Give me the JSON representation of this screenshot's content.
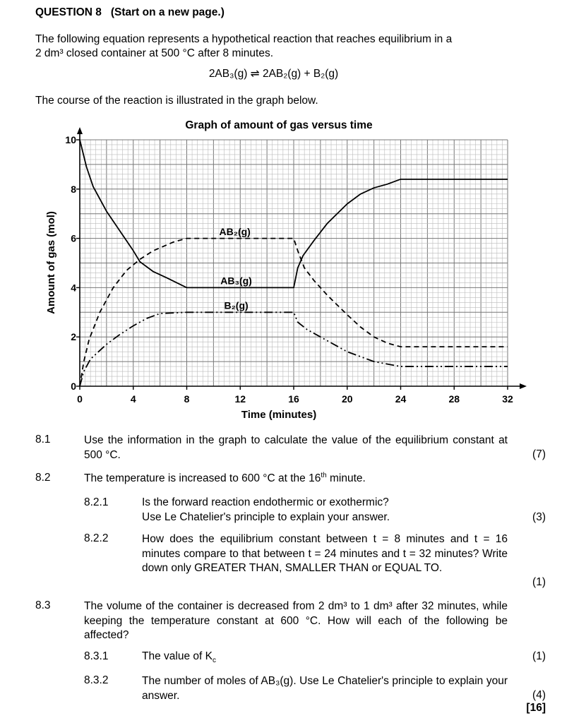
{
  "heading": {
    "question": "QUESTION 8",
    "note": "(Start on a new page.)"
  },
  "intro": {
    "line1": "The following equation represents a hypothetical reaction that reaches equilibrium in a",
    "line2": "2 dm³ closed container at 500 °C after 8 minutes.",
    "equation": "2AB₃(g) ⇌ 2AB₂(g) + B₂(g)",
    "course": "The course of the reaction is illustrated in the graph below."
  },
  "chart_data": {
    "type": "line",
    "title": "Graph of amount of gas versus time",
    "xlabel": "Time (minutes)",
    "ylabel": "Amount of gas (mol)",
    "xlim": [
      0,
      32
    ],
    "ylim": [
      0,
      10
    ],
    "xticks": [
      0,
      4,
      8,
      12,
      16,
      20,
      24,
      28,
      32
    ],
    "yticks": [
      0,
      2,
      4,
      6,
      8,
      10
    ],
    "grid": true,
    "series": [
      {
        "name": "AB₃(g)",
        "style": "solid",
        "x": [
          0,
          0.5,
          1,
          2,
          3,
          4,
          4.5,
          5.5,
          6.5,
          8,
          16,
          16.3,
          16.7,
          17.5,
          18.5,
          20,
          21,
          22,
          23,
          24,
          32
        ],
        "y": [
          10,
          8.9,
          8.1,
          7.1,
          6.3,
          5.5,
          5.05,
          4.65,
          4.4,
          4.0,
          4.0,
          4.8,
          5.3,
          5.9,
          6.6,
          7.4,
          7.8,
          8.05,
          8.2,
          8.4,
          8.4
        ]
      },
      {
        "name": "AB₂(g)",
        "style": "dashed",
        "x": [
          0,
          0.3,
          0.7,
          1.5,
          2.5,
          3.5,
          4.5,
          5.5,
          7,
          8,
          16,
          16.3,
          16.8,
          17.5,
          18.5,
          20,
          21,
          22,
          23,
          24,
          32
        ],
        "y": [
          0,
          1.0,
          1.9,
          3.0,
          4.0,
          4.7,
          5.15,
          5.5,
          5.85,
          6.0,
          6.0,
          5.5,
          4.8,
          4.3,
          3.7,
          2.9,
          2.4,
          2.0,
          1.75,
          1.6,
          1.6
        ]
      },
      {
        "name": "B₂(g)",
        "style": "dash-dot-dot",
        "x": [
          0,
          0.3,
          0.8,
          2,
          3,
          4,
          5,
          6,
          8,
          16,
          16.3,
          17,
          18,
          19,
          20,
          21,
          22,
          23,
          24,
          32
        ],
        "y": [
          0,
          0.6,
          1.1,
          1.7,
          2.1,
          2.45,
          2.75,
          2.95,
          3.0,
          3.0,
          2.6,
          2.3,
          2.0,
          1.7,
          1.4,
          1.2,
          1.0,
          0.9,
          0.8,
          0.8
        ]
      }
    ],
    "labels": [
      {
        "text": "AB₂(g)",
        "x": 11.6,
        "y": 6.05
      },
      {
        "text": "AB₃(g)",
        "x": 11.7,
        "y": 4.05
      },
      {
        "text": "B₂(g)",
        "x": 11.7,
        "y": 3.05
      }
    ]
  },
  "questions": {
    "q81": {
      "num": "8.1",
      "text": "Use the information in the graph to calculate the value of the equilibrium constant at 500 °C.",
      "mark": "(7)"
    },
    "q82": {
      "num": "8.2",
      "text_before": "The temperature is increased to 600 °C at the 16",
      "sup": "th",
      "text_after": " minute."
    },
    "q821": {
      "num": "8.2.1",
      "line1": "Is the forward reaction endothermic or exothermic?",
      "line2": "Use Le Chatelier's principle to explain your answer.",
      "mark": "(3)"
    },
    "q822": {
      "num": "8.2.2",
      "text": "How does the equilibrium constant between t = 8 minutes and t = 16 minutes compare to that between t = 24 minutes and t = 32 minutes? Write down only GREATER THAN, SMALLER THAN or EQUAL TO.",
      "mark": "(1)"
    },
    "q83": {
      "num": "8.3",
      "text": "The volume of the container is decreased from 2 dm³ to 1 dm³ after 32 minutes, while keeping the temperature constant at 600 °C. How will each of the following be affected?"
    },
    "q831": {
      "num": "8.3.1",
      "text": "The value of K",
      "sub": "c",
      "mark": "(1)"
    },
    "q832": {
      "num": "8.3.2",
      "text": "The number of moles of AB₃(g). Use Le Chatelier's principle to explain your answer.",
      "mark": "(4)",
      "total": "[16]"
    }
  }
}
